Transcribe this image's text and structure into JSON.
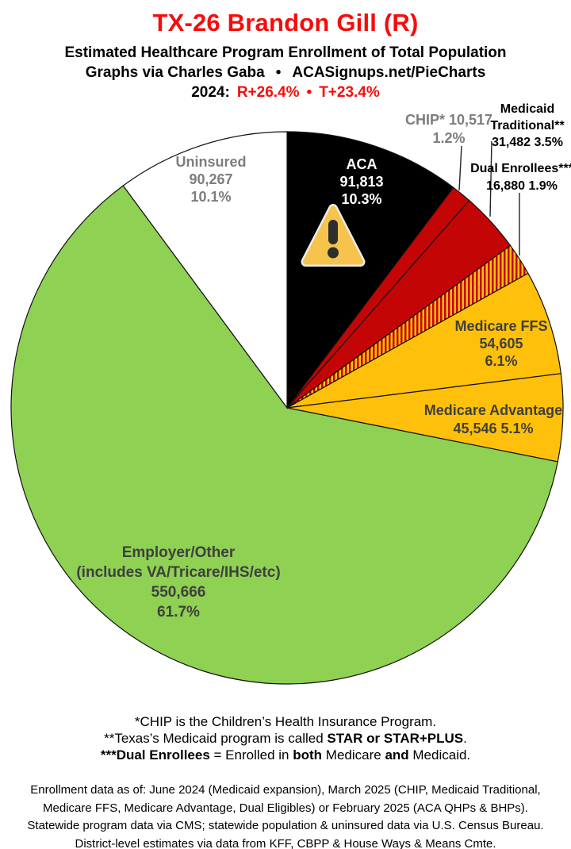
{
  "header": {
    "title": "TX-26 Brandon Gill (R)",
    "subtitle": "Estimated Healthcare Program Enrollment of Total Population",
    "byline_left": "Graphs via Charles Gaba",
    "bullet": "•",
    "byline_right": "ACASignups.net/PieCharts",
    "margins": {
      "year_label": "2024:",
      "r_margin": "R+26.4%",
      "bullet": "•",
      "t_margin": "T+23.4%"
    }
  },
  "chart_data": {
    "type": "pie",
    "title": "Estimated Healthcare Program Enrollment of Total Population",
    "district": "TX-26",
    "representative": "Brandon Gill (R)",
    "total": 891776,
    "start_angle_deg": 0,
    "direction": "clockwise",
    "legend_position": "labels-on-and-around-slices",
    "slices": [
      {
        "id": "aca",
        "label": "ACA",
        "value": 91813,
        "value_label": "91,813",
        "pct_label": "10.3%",
        "color": "#000000"
      },
      {
        "id": "chip",
        "label": "CHIP*",
        "value": 10517,
        "value_label": "10,517",
        "pct_label": "1.2%",
        "color": "#c30505"
      },
      {
        "id": "medicaid-traditional",
        "label": "Medicaid Traditional**",
        "value": 31482,
        "value_label": "31,482",
        "pct_label": "3.5%",
        "color": "#c30505"
      },
      {
        "id": "dual-enrollees",
        "label": "Dual Enrollees***",
        "value": 16880,
        "value_label": "16,880",
        "pct_label": "1.9%",
        "color": "#c30505",
        "pattern": "vertical-stripes",
        "pattern_colors": [
          "#c30505",
          "#ffc00c"
        ]
      },
      {
        "id": "medicare-ffs",
        "label": "Medicare FFS",
        "value": 54605,
        "value_label": "54,605",
        "pct_label": "6.1%",
        "color": "#ffc00c"
      },
      {
        "id": "medicare-advantage",
        "label": "Medicare Advantage",
        "value": 45546,
        "value_label": "45,546",
        "pct_label": "5.1%",
        "color": "#ffc00c"
      },
      {
        "id": "employer-other",
        "label": "Employer/Other (includes VA/Tricare/IHS/etc)",
        "value": 550666,
        "value_label": "550,666",
        "pct_label": "61.7%",
        "color": "#8ed153"
      },
      {
        "id": "uninsured",
        "label": "Uninsured",
        "value": 90267,
        "value_label": "90,267",
        "pct_label": "10.1%",
        "color": "#ffffff"
      }
    ]
  },
  "labels": {
    "aca": [
      "ACA",
      "91,813",
      "10.3%"
    ],
    "chip": [
      "CHIP* 10,517",
      "1.2%"
    ],
    "medicaid": [
      "Medicaid",
      "Traditional**",
      "31,482 3.5%"
    ],
    "dual": [
      "Dual Enrollees***",
      "16,880 1.9%"
    ],
    "ffs": [
      "Medicare FFS",
      "54,605",
      "6.1%"
    ],
    "adv": [
      "Medicare Advantage",
      "45,546 5.1%"
    ],
    "employer": [
      "Employer/Other",
      "(includes VA/Tricare/IHS/etc)",
      "550,666",
      "61.7%"
    ],
    "uninsured": [
      "Uninsured",
      "90,267",
      "10.1%"
    ]
  },
  "icons": {
    "aca_warning": "warning-triangle"
  },
  "footnotes": {
    "f1": [
      "*CHIP is the Children’s Health Insurance Program."
    ],
    "f2": [
      "**Texas’s Medicaid program is called ",
      "STAR or STAR+PLUS",
      "."
    ],
    "f3": [
      "***Dual Enrollees",
      " = Enrolled in ",
      "both",
      " Medicare ",
      "and",
      " Medicaid."
    ]
  },
  "source_lines": [
    "Enrollment data as of: June 2024 (Medicaid expansion), March 2025 (CHIP, Medicaid Traditional,",
    "Medicare FFS, Medicare Advantage, Dual Eligibles) or February 2025 (ACA QHPs & BHPs).",
    "Statewide program data via CMS; statewide population & uninsured data via U.S. Census Bureau.",
    "District-level estimates via data from KFF, CBPP & House Ways & Means Cmte."
  ],
  "colors": {
    "title_red": "#f80b0b",
    "gray_label": "#7d7d7d",
    "dark_label": "#3f3f3f",
    "slice_outline": "#111111"
  }
}
